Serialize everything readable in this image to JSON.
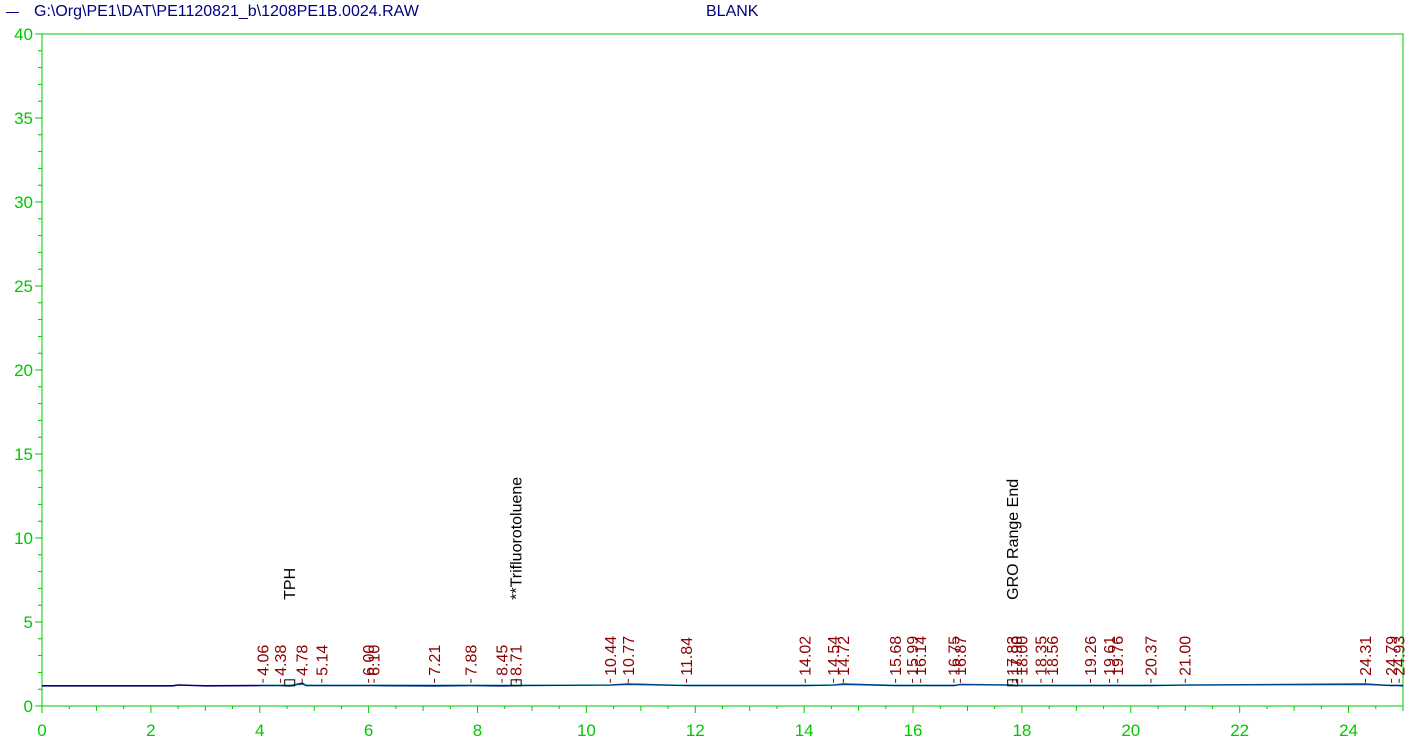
{
  "header": {
    "file_path": "G:\\Org\\PE1\\DAT\\PE1120821_b\\1208PE1B.0024.RAW",
    "sample_name": "BLANK"
  },
  "colors": {
    "axis": "#00c800",
    "trace": "#000080",
    "peak_label": "#8b0000",
    "annotation": "#000000",
    "baseline_marker": "#00aaaa"
  },
  "chart_data": {
    "type": "line",
    "title": "",
    "xlabel": "",
    "ylabel": "",
    "xlim": [
      0,
      25
    ],
    "ylim": [
      0,
      40
    ],
    "x_ticks": [
      0,
      2,
      4,
      6,
      8,
      10,
      12,
      14,
      16,
      18,
      20,
      22,
      24
    ],
    "y_ticks": [
      0,
      5,
      10,
      15,
      20,
      25,
      30,
      35,
      40
    ],
    "grid": false,
    "baseline": 1.2,
    "series": [
      {
        "x": [
          0,
          2.4,
          2.5,
          2.8,
          3.0,
          4.06,
          4.38,
          4.55,
          4.78,
          4.85,
          5.14,
          6.0,
          6.1,
          7.21,
          7.88,
          8.45,
          8.71,
          10.44,
          10.77,
          11.84,
          14.02,
          14.54,
          14.72,
          15.68,
          15.99,
          16.14,
          16.75,
          16.87,
          17.83,
          17.9,
          18.0,
          18.35,
          18.56,
          19.26,
          19.61,
          19.76,
          20.37,
          21.0,
          24.31,
          24.79,
          24.93,
          25.0
        ],
        "y": [
          1.2,
          1.2,
          1.25,
          1.22,
          1.2,
          1.22,
          1.22,
          1.2,
          1.35,
          1.22,
          1.22,
          1.22,
          1.22,
          1.2,
          1.22,
          1.2,
          1.22,
          1.25,
          1.3,
          1.22,
          1.22,
          1.25,
          1.3,
          1.22,
          1.22,
          1.22,
          1.22,
          1.28,
          1.25,
          1.22,
          1.22,
          1.22,
          1.22,
          1.22,
          1.22,
          1.22,
          1.22,
          1.25,
          1.3,
          1.22,
          1.22,
          1.2
        ]
      }
    ],
    "peaks": [
      "4.06",
      "4.38",
      "4.78",
      "5.14",
      "6.00",
      "6.10",
      "7.21",
      "7.88",
      "8.45",
      "8.71",
      "10.44",
      "10.77",
      "11.84",
      "14.02",
      "14.54",
      "14.72",
      "15.68",
      "15.99",
      "16.14",
      "16.75",
      "16.87",
      "17.83",
      "17.90",
      "18.00",
      "18.35",
      "18.56",
      "19.26",
      "19.61",
      "19.76",
      "20.37",
      "21.00",
      "24.31",
      "24.79",
      "24.93"
    ],
    "compounds": [
      {
        "name": "TPH",
        "rt": 4.55
      },
      {
        "name": "**Trifluorotoluene",
        "rt": 8.71
      },
      {
        "name": "GRO Range End",
        "rt": 17.83
      }
    ]
  }
}
